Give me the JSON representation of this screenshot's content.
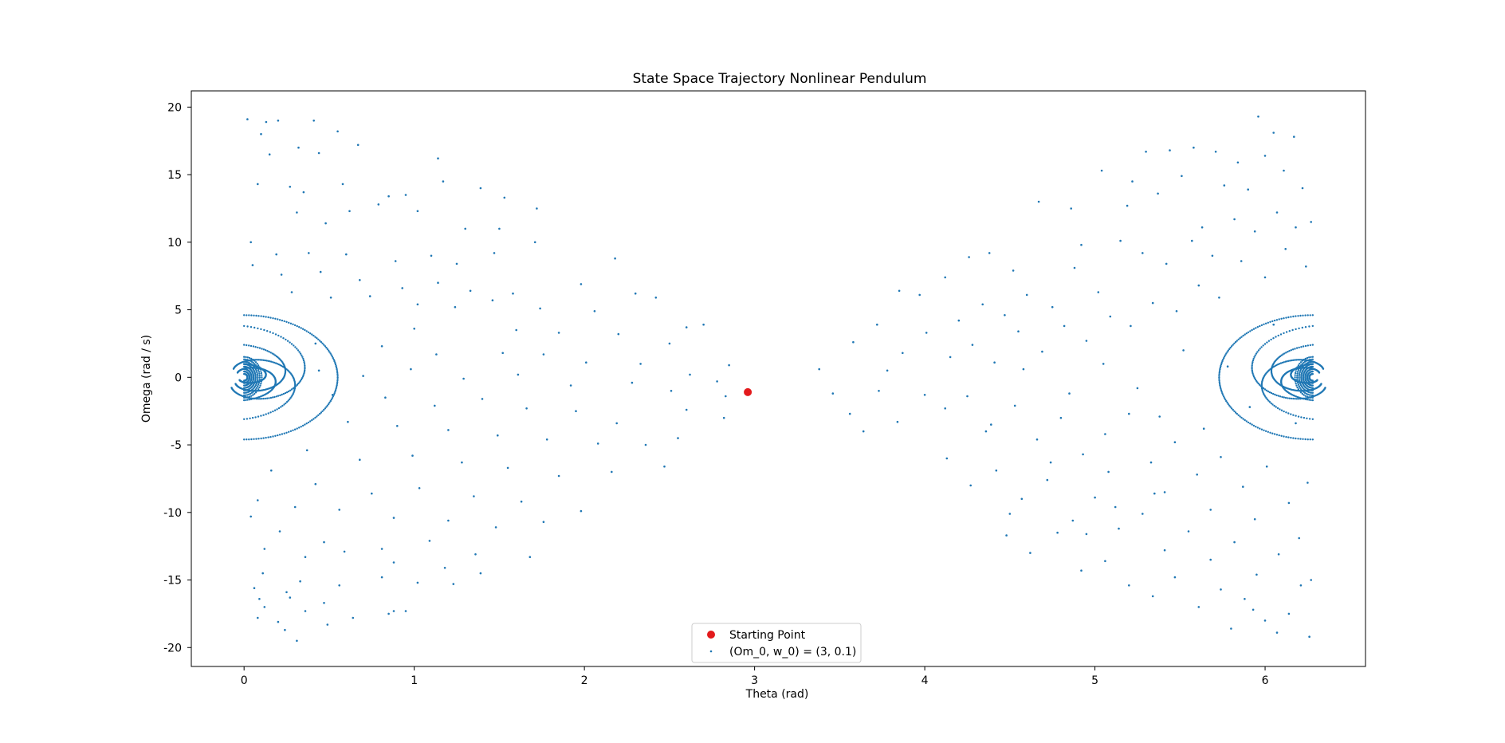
{
  "chart_data": {
    "type": "scatter",
    "title": "State Space Trajectory Nonlinear Pendulum",
    "xlabel": "Theta (rad)",
    "ylabel": "Omega (rad / s)",
    "xlim": [
      -0.31,
      6.59
    ],
    "ylim": [
      -21.4,
      21.2
    ],
    "xticks": [
      0,
      1,
      2,
      3,
      4,
      5,
      6
    ],
    "yticks": [
      -20,
      -15,
      -10,
      -5,
      0,
      5,
      10,
      15,
      20
    ],
    "grid": false,
    "legend_placement": "lower center",
    "colors": {
      "start": "#e31a1c",
      "trajectory": "#1f77b4"
    },
    "series": [
      {
        "name": "Starting Point",
        "marker": "circle-large",
        "color": "#e31a1c",
        "points": [
          [
            2.96,
            -1.1
          ]
        ]
      },
      {
        "name": "(Om_0, w_0) = (3, 0.1)",
        "marker": "dot-small",
        "color": "#1f77b4",
        "x_range": [
          0,
          6.28
        ],
        "omega_range": [
          -19.5,
          19.5
        ],
        "points": [
          [
            0.02,
            19.1
          ],
          [
            0.13,
            18.9
          ],
          [
            0.2,
            19.0
          ],
          [
            0.41,
            19.0
          ],
          [
            0.55,
            18.2
          ],
          [
            0.1,
            18.0
          ],
          [
            0.32,
            17.0
          ],
          [
            0.67,
            17.2
          ],
          [
            0.15,
            16.5
          ],
          [
            0.44,
            16.6
          ],
          [
            1.14,
            16.2
          ],
          [
            0.08,
            14.3
          ],
          [
            0.27,
            14.1
          ],
          [
            0.35,
            13.7
          ],
          [
            0.58,
            14.3
          ],
          [
            0.85,
            13.4
          ],
          [
            0.95,
            13.5
          ],
          [
            1.17,
            14.5
          ],
          [
            1.39,
            14.0
          ],
          [
            1.53,
            13.3
          ],
          [
            1.72,
            12.5
          ],
          [
            0.31,
            12.2
          ],
          [
            0.48,
            11.4
          ],
          [
            0.62,
            12.3
          ],
          [
            0.79,
            12.8
          ],
          [
            1.02,
            12.3
          ],
          [
            1.3,
            11.0
          ],
          [
            1.5,
            11.0
          ],
          [
            1.71,
            10.0
          ],
          [
            0.04,
            10.0
          ],
          [
            0.19,
            9.1
          ],
          [
            0.38,
            9.2
          ],
          [
            0.6,
            9.1
          ],
          [
            0.89,
            8.6
          ],
          [
            1.1,
            9.0
          ],
          [
            1.25,
            8.4
          ],
          [
            1.47,
            9.2
          ],
          [
            2.18,
            8.8
          ],
          [
            0.05,
            8.3
          ],
          [
            0.22,
            7.6
          ],
          [
            0.45,
            7.8
          ],
          [
            0.68,
            7.2
          ],
          [
            0.93,
            6.6
          ],
          [
            1.14,
            7.0
          ],
          [
            1.33,
            6.4
          ],
          [
            1.58,
            6.2
          ],
          [
            1.98,
            6.9
          ],
          [
            2.3,
            6.2
          ],
          [
            2.42,
            5.9
          ],
          [
            0.28,
            6.3
          ],
          [
            0.51,
            5.9
          ],
          [
            0.74,
            6.0
          ],
          [
            1.02,
            5.4
          ],
          [
            1.24,
            5.2
          ],
          [
            1.46,
            5.7
          ],
          [
            1.74,
            5.1
          ],
          [
            2.06,
            4.9
          ],
          [
            2.6,
            3.7
          ],
          [
            2.7,
            3.9
          ],
          [
            1.0,
            3.6
          ],
          [
            1.6,
            3.5
          ],
          [
            1.85,
            3.3
          ],
          [
            2.2,
            3.2
          ],
          [
            2.5,
            2.5
          ],
          [
            2.85,
            0.9
          ],
          [
            0.42,
            2.5
          ],
          [
            0.81,
            2.3
          ],
          [
            1.13,
            1.7
          ],
          [
            1.52,
            1.8
          ],
          [
            1.76,
            1.7
          ],
          [
            2.01,
            1.1
          ],
          [
            2.33,
            1.0
          ],
          [
            2.62,
            0.2
          ],
          [
            2.78,
            -0.3
          ],
          [
            0.44,
            0.5
          ],
          [
            0.7,
            0.1
          ],
          [
            0.98,
            0.6
          ],
          [
            1.29,
            -0.1
          ],
          [
            1.61,
            0.2
          ],
          [
            1.92,
            -0.6
          ],
          [
            2.28,
            -0.4
          ],
          [
            2.51,
            -1.0
          ],
          [
            2.83,
            -1.4
          ],
          [
            0.52,
            -1.3
          ],
          [
            0.83,
            -1.5
          ],
          [
            1.12,
            -2.1
          ],
          [
            1.4,
            -1.6
          ],
          [
            1.66,
            -2.3
          ],
          [
            1.95,
            -2.5
          ],
          [
            2.19,
            -3.4
          ],
          [
            2.6,
            -2.4
          ],
          [
            2.82,
            -3.0
          ],
          [
            0.61,
            -3.3
          ],
          [
            0.9,
            -3.6
          ],
          [
            1.2,
            -3.9
          ],
          [
            1.49,
            -4.3
          ],
          [
            1.78,
            -4.6
          ],
          [
            2.08,
            -4.9
          ],
          [
            2.36,
            -5.0
          ],
          [
            2.55,
            -4.5
          ],
          [
            0.37,
            -5.4
          ],
          [
            0.68,
            -6.1
          ],
          [
            0.99,
            -5.8
          ],
          [
            1.28,
            -6.3
          ],
          [
            1.55,
            -6.7
          ],
          [
            1.85,
            -7.3
          ],
          [
            2.16,
            -7.0
          ],
          [
            2.47,
            -6.6
          ],
          [
            0.16,
            -6.9
          ],
          [
            0.42,
            -7.9
          ],
          [
            0.75,
            -8.6
          ],
          [
            1.03,
            -8.2
          ],
          [
            1.35,
            -8.8
          ],
          [
            1.63,
            -9.2
          ],
          [
            1.98,
            -9.9
          ],
          [
            0.08,
            -9.1
          ],
          [
            0.3,
            -9.6
          ],
          [
            0.56,
            -9.8
          ],
          [
            0.88,
            -10.4
          ],
          [
            1.2,
            -10.6
          ],
          [
            1.48,
            -11.1
          ],
          [
            1.76,
            -10.7
          ],
          [
            0.04,
            -10.3
          ],
          [
            0.21,
            -11.4
          ],
          [
            0.47,
            -12.2
          ],
          [
            0.81,
            -12.7
          ],
          [
            1.09,
            -12.1
          ],
          [
            1.36,
            -13.1
          ],
          [
            1.68,
            -13.3
          ],
          [
            0.12,
            -12.7
          ],
          [
            0.36,
            -13.3
          ],
          [
            0.59,
            -12.9
          ],
          [
            0.88,
            -13.7
          ],
          [
            1.18,
            -14.1
          ],
          [
            1.39,
            -14.5
          ],
          [
            0.11,
            -14.5
          ],
          [
            0.33,
            -15.1
          ],
          [
            0.56,
            -15.4
          ],
          [
            0.81,
            -14.8
          ],
          [
            1.02,
            -15.2
          ],
          [
            1.23,
            -15.3
          ],
          [
            0.09,
            -16.4
          ],
          [
            0.25,
            -15.9
          ],
          [
            0.47,
            -16.7
          ],
          [
            0.88,
            -17.3
          ],
          [
            0.64,
            -17.8
          ],
          [
            0.08,
            -17.8
          ],
          [
            0.2,
            -18.1
          ],
          [
            0.36,
            -17.3
          ],
          [
            0.49,
            -18.3
          ],
          [
            0.31,
            -19.5
          ],
          [
            0.12,
            -17.0
          ],
          [
            0.85,
            -17.5
          ],
          [
            0.95,
            -17.3
          ],
          [
            0.24,
            -18.7
          ],
          [
            0.06,
            -15.6
          ],
          [
            0.27,
            -16.3
          ],
          [
            3.38,
            0.6
          ],
          [
            3.58,
            2.6
          ],
          [
            3.72,
            3.9
          ],
          [
            3.87,
            1.8
          ],
          [
            4.01,
            3.3
          ],
          [
            3.46,
            -1.2
          ],
          [
            3.73,
            -1.0
          ],
          [
            3.84,
            -3.3
          ],
          [
            3.64,
            -4.0
          ],
          [
            4.0,
            -1.3
          ],
          [
            4.12,
            7.4
          ],
          [
            4.26,
            8.9
          ],
          [
            4.38,
            9.2
          ],
          [
            4.52,
            7.9
          ],
          [
            4.67,
            13.0
          ],
          [
            4.86,
            12.5
          ],
          [
            4.92,
            9.8
          ],
          [
            5.04,
            15.3
          ],
          [
            5.22,
            14.5
          ],
          [
            5.3,
            16.7
          ],
          [
            5.44,
            16.8
          ],
          [
            5.58,
            17.0
          ],
          [
            5.71,
            16.7
          ],
          [
            5.84,
            15.9
          ],
          [
            5.96,
            19.3
          ],
          [
            6.05,
            18.1
          ],
          [
            6.17,
            17.8
          ],
          [
            5.19,
            12.7
          ],
          [
            5.37,
            13.6
          ],
          [
            5.51,
            14.9
          ],
          [
            5.63,
            11.1
          ],
          [
            5.76,
            14.2
          ],
          [
            5.9,
            13.9
          ],
          [
            6.0,
            16.4
          ],
          [
            6.11,
            15.3
          ],
          [
            6.22,
            14.0
          ],
          [
            4.2,
            4.2
          ],
          [
            4.34,
            5.4
          ],
          [
            4.47,
            4.6
          ],
          [
            4.6,
            6.1
          ],
          [
            4.75,
            5.2
          ],
          [
            4.88,
            8.1
          ],
          [
            5.02,
            6.3
          ],
          [
            5.15,
            10.1
          ],
          [
            5.28,
            9.2
          ],
          [
            5.42,
            8.4
          ],
          [
            5.57,
            10.1
          ],
          [
            5.69,
            9.0
          ],
          [
            5.82,
            11.7
          ],
          [
            5.94,
            10.8
          ],
          [
            6.07,
            12.2
          ],
          [
            6.18,
            11.1
          ],
          [
            4.15,
            1.5
          ],
          [
            4.28,
            2.4
          ],
          [
            4.41,
            1.1
          ],
          [
            4.55,
            3.4
          ],
          [
            4.69,
            1.9
          ],
          [
            4.82,
            3.8
          ],
          [
            4.95,
            2.7
          ],
          [
            5.09,
            4.5
          ],
          [
            5.21,
            3.8
          ],
          [
            5.34,
            5.5
          ],
          [
            5.48,
            4.9
          ],
          [
            5.61,
            6.8
          ],
          [
            5.73,
            5.9
          ],
          [
            5.86,
            8.6
          ],
          [
            6.0,
            7.4
          ],
          [
            6.12,
            9.5
          ],
          [
            6.24,
            8.2
          ],
          [
            4.12,
            -2.3
          ],
          [
            4.25,
            -1.4
          ],
          [
            4.39,
            -3.5
          ],
          [
            4.53,
            -2.1
          ],
          [
            4.66,
            -4.6
          ],
          [
            4.8,
            -3.0
          ],
          [
            4.93,
            -5.7
          ],
          [
            5.06,
            -4.2
          ],
          [
            5.2,
            -2.7
          ],
          [
            5.33,
            -6.3
          ],
          [
            5.47,
            -4.8
          ],
          [
            5.6,
            -7.2
          ],
          [
            5.74,
            -5.9
          ],
          [
            5.87,
            -8.1
          ],
          [
            6.01,
            -6.6
          ],
          [
            6.14,
            -9.3
          ],
          [
            6.25,
            -7.8
          ],
          [
            4.13,
            -6.0
          ],
          [
            4.27,
            -8.0
          ],
          [
            4.42,
            -6.9
          ],
          [
            4.57,
            -9.0
          ],
          [
            4.72,
            -7.6
          ],
          [
            4.87,
            -10.6
          ],
          [
            5.0,
            -8.9
          ],
          [
            5.14,
            -11.2
          ],
          [
            5.28,
            -10.1
          ],
          [
            5.41,
            -12.8
          ],
          [
            5.55,
            -11.4
          ],
          [
            5.68,
            -13.5
          ],
          [
            5.82,
            -12.2
          ],
          [
            5.95,
            -14.6
          ],
          [
            6.08,
            -13.1
          ],
          [
            6.21,
            -15.4
          ],
          [
            4.48,
            -11.7
          ],
          [
            4.62,
            -13.0
          ],
          [
            4.78,
            -11.5
          ],
          [
            4.92,
            -14.3
          ],
          [
            5.06,
            -13.6
          ],
          [
            5.2,
            -15.4
          ],
          [
            5.34,
            -16.2
          ],
          [
            5.47,
            -14.8
          ],
          [
            5.61,
            -17.0
          ],
          [
            5.74,
            -15.7
          ],
          [
            5.88,
            -16.4
          ],
          [
            6.0,
            -18.0
          ],
          [
            6.14,
            -17.5
          ],
          [
            6.26,
            -19.2
          ],
          [
            5.8,
            -18.6
          ],
          [
            6.07,
            -18.9
          ],
          [
            5.93,
            -17.2
          ],
          [
            4.95,
            -11.6
          ],
          [
            5.12,
            -9.6
          ],
          [
            5.41,
            -8.5
          ],
          [
            5.68,
            -9.8
          ],
          [
            4.5,
            -10.1
          ],
          [
            4.36,
            -4.0
          ],
          [
            4.58,
            0.6
          ],
          [
            4.85,
            -1.2
          ],
          [
            5.05,
            1.0
          ],
          [
            5.25,
            -0.8
          ],
          [
            5.52,
            2.0
          ],
          [
            5.78,
            0.8
          ],
          [
            6.05,
            3.9
          ],
          [
            5.38,
            -2.9
          ],
          [
            5.64,
            -3.8
          ],
          [
            5.91,
            -2.2
          ],
          [
            6.18,
            -3.4
          ],
          [
            4.74,
            -6.3
          ],
          [
            5.08,
            -7.0
          ],
          [
            5.35,
            -8.6
          ],
          [
            5.94,
            -10.5
          ],
          [
            6.2,
            -11.9
          ],
          [
            6.27,
            11.5
          ],
          [
            6.27,
            -15.0
          ],
          [
            3.78,
            0.5
          ],
          [
            3.56,
            -2.7
          ],
          [
            3.85,
            6.4
          ],
          [
            3.97,
            6.1
          ]
        ]
      }
    ],
    "spiral_branches": {
      "left_center": [
        0.0,
        0.0
      ],
      "right_center": [
        6.28,
        0.0
      ],
      "outer_envelope_omega": 4.6
    }
  }
}
